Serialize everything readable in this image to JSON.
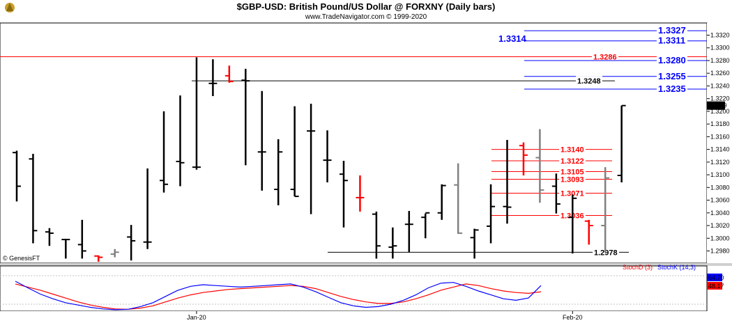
{
  "header": {
    "title": "$GBP-USD:  British Pound/US Dollar @ FORXNY  (Daily bars)",
    "subtitle": "www.TradeNavigator.com © 1999-2020",
    "watermark": "© GenesisFT"
  },
  "colors": {
    "up_bar": "#000000",
    "down_bar": "#ff0000",
    "inside_bar": "#808080",
    "blue_level": "#0000ff",
    "red_level": "#ff0000",
    "black_level": "#000000",
    "stoch_d": "#ff0000",
    "stoch_k": "#0000ff"
  },
  "chart_data": [
    {
      "type": "ohlc",
      "title": "$GBP-USD:  British Pound/US Dollar @ FORXNY  (Daily bars)",
      "ylim": [
        1.2968,
        1.3338
      ],
      "y_ticks": [
        "1.3320",
        "1.3300",
        "1.3280",
        "1.3260",
        "1.3240",
        "1.3220",
        "1.3200",
        "1.3180",
        "1.3160",
        "1.3140",
        "1.3120",
        "1.3100",
        "1.3080",
        "1.3060",
        "1.3040",
        "1.3020",
        "1.3000",
        "1.2980"
      ],
      "x_labels": [
        {
          "label": "Jan-20",
          "bar": 11
        },
        {
          "label": "Feb-20",
          "bar": 34
        }
      ],
      "last_price": "1.3209",
      "bars": [
        {
          "o": 1.3135,
          "h": 1.3138,
          "l": 1.3058,
          "c": 1.3082,
          "color": "up"
        },
        {
          "o": 1.3125,
          "h": 1.3133,
          "l": 1.2992,
          "c": 1.3012,
          "color": "up"
        },
        {
          "o": 1.301,
          "h": 1.3016,
          "l": 1.2988,
          "c": 1.3008,
          "color": "up"
        },
        {
          "o": 1.2998,
          "h": 1.2999,
          "l": 1.2968,
          "c": 1.2998,
          "color": "up"
        },
        {
          "o": 1.299,
          "h": 1.3029,
          "l": 1.2968,
          "c": 1.298,
          "color": "up"
        },
        {
          "o": 1.2972,
          "h": 1.2973,
          "l": 1.2963,
          "c": 1.297,
          "color": "down"
        },
        {
          "o": 1.2975,
          "h": 1.2983,
          "l": 1.297,
          "c": 1.2978,
          "color": "inside"
        },
        {
          "o": 1.3002,
          "h": 1.3021,
          "l": 1.2965,
          "c": 1.2996,
          "color": "up"
        },
        {
          "o": 1.2994,
          "h": 1.311,
          "l": 1.2983,
          "c": 1.2994,
          "color": "up"
        },
        {
          "o": 1.3091,
          "h": 1.32,
          "l": 1.3072,
          "c": 1.3085,
          "color": "up"
        },
        {
          "o": 1.3121,
          "h": 1.3225,
          "l": 1.3082,
          "c": 1.3119,
          "color": "up"
        },
        {
          "o": 1.3112,
          "h": 1.3285,
          "l": 1.3108,
          "c": 1.3112,
          "color": "up"
        },
        {
          "o": 1.3244,
          "h": 1.3282,
          "l": 1.3224,
          "c": 1.3244,
          "color": "up"
        },
        {
          "o": 1.3256,
          "h": 1.3272,
          "l": 1.3245,
          "c": 1.3247,
          "color": "down"
        },
        {
          "o": 1.3249,
          "h": 1.3267,
          "l": 1.3115,
          "c": 1.3248,
          "color": "up"
        },
        {
          "o": 1.3136,
          "h": 1.3232,
          "l": 1.3075,
          "c": 1.3136,
          "color": "up"
        },
        {
          "o": 1.3077,
          "h": 1.3156,
          "l": 1.3052,
          "c": 1.3136,
          "color": "up"
        },
        {
          "o": 1.3077,
          "h": 1.3208,
          "l": 1.3066,
          "c": 1.3066,
          "color": "up"
        },
        {
          "o": 1.3169,
          "h": 1.3212,
          "l": 1.3038,
          "c": 1.3169,
          "color": "up"
        },
        {
          "o": 1.3123,
          "h": 1.317,
          "l": 1.3088,
          "c": 1.3123,
          "color": "up"
        },
        {
          "o": 1.3101,
          "h": 1.3122,
          "l": 1.3017,
          "c": 1.3091,
          "color": "up"
        },
        {
          "o": 1.3064,
          "h": 1.3099,
          "l": 1.3042,
          "c": 1.3064,
          "color": "down"
        },
        {
          "o": 1.3038,
          "h": 1.3042,
          "l": 1.2968,
          "c": 1.2988,
          "color": "up"
        },
        {
          "o": 1.2986,
          "h": 1.3017,
          "l": 1.2968,
          "c": 1.2988,
          "color": "up"
        },
        {
          "o": 1.3022,
          "h": 1.3043,
          "l": 1.2978,
          "c": 1.3022,
          "color": "up"
        },
        {
          "o": 1.3033,
          "h": 1.3039,
          "l": 1.3,
          "c": 1.304,
          "color": "up"
        },
        {
          "o": 1.304,
          "h": 1.3085,
          "l": 1.3029,
          "c": 1.3083,
          "color": "up"
        },
        {
          "o": 1.3084,
          "h": 1.3118,
          "l": 1.3007,
          "c": 1.3008,
          "color": "inside"
        },
        {
          "o": 1.3001,
          "h": 1.3015,
          "l": 1.2968,
          "c": 1.3013,
          "color": "up"
        },
        {
          "o": 1.3019,
          "h": 1.3085,
          "l": 1.2992,
          "c": 1.305,
          "color": "up"
        },
        {
          "o": 1.305,
          "h": 1.3155,
          "l": 1.3023,
          "c": 1.3049,
          "color": "up"
        },
        {
          "o": 1.3146,
          "h": 1.3151,
          "l": 1.3099,
          "c": 1.3131,
          "color": "down"
        },
        {
          "o": 1.3127,
          "h": 1.3172,
          "l": 1.3056,
          "c": 1.3076,
          "color": "inside"
        },
        {
          "o": 1.3082,
          "h": 1.3102,
          "l": 1.3039,
          "c": 1.3054,
          "color": "up"
        },
        {
          "o": 1.3033,
          "h": 1.3069,
          "l": 1.2976,
          "c": 1.3063,
          "color": "up"
        },
        {
          "o": 1.3027,
          "h": 1.3029,
          "l": 1.299,
          "c": 1.302,
          "color": "down"
        },
        {
          "o": 1.302,
          "h": 1.3112,
          "l": 1.2978,
          "c": 1.3095,
          "color": "inside"
        },
        {
          "o": 1.3099,
          "h": 1.3209,
          "l": 1.3088,
          "c": 1.3209,
          "color": "up"
        }
      ]
    },
    {
      "type": "line",
      "title": "",
      "ylim": [
        0,
        100
      ],
      "y_ticks": [],
      "series": [
        {
          "name": "StochD (3)",
          "color": "#ff0000",
          "values": [
            68,
            60,
            52,
            42,
            32,
            22,
            14,
            8,
            4,
            3,
            6,
            12,
            22,
            32,
            40,
            46,
            50,
            54,
            56,
            58,
            60,
            62,
            64,
            62,
            56,
            46,
            36,
            28,
            22,
            18,
            18,
            22,
            30,
            40,
            52,
            60,
            68,
            64,
            56,
            50,
            46,
            44,
            48
          ]
        },
        {
          "name": "StochK (14,3)",
          "color": "#0000ff",
          "values": [
            75,
            58,
            42,
            30,
            20,
            14,
            8,
            4,
            2,
            3,
            10,
            20,
            36,
            52,
            62,
            66,
            64,
            62,
            60,
            62,
            64,
            66,
            68,
            60,
            48,
            34,
            20,
            12,
            8,
            10,
            16,
            26,
            40,
            58,
            70,
            72,
            62,
            50,
            40,
            30,
            26,
            32,
            64
          ]
        }
      ],
      "last_values": {
        "k": "64.70",
        "d": "48.17"
      }
    }
  ],
  "levels": [
    {
      "value": "1.3327",
      "price": 1.3327,
      "color": "blue",
      "x_start": 752,
      "label_side": "right",
      "size": "big"
    },
    {
      "value": "1.3311",
      "price": 1.3311,
      "color": "blue",
      "x_start": 752,
      "label_side": "right",
      "size": "big"
    },
    {
      "value": "1.3314",
      "price": 1.3314,
      "color": "blue",
      "x_start": 752,
      "label_side": "left",
      "size": "big"
    },
    {
      "value": "1.3286",
      "price": 1.3286,
      "color": "red",
      "x_start": 0,
      "label_side": "mid",
      "size": "normal"
    },
    {
      "value": "1.3280",
      "price": 1.328,
      "color": "blue",
      "x_start": 752,
      "label_side": "right",
      "size": "big"
    },
    {
      "value": "1.3255",
      "price": 1.3255,
      "color": "blue",
      "x_start": 752,
      "label_side": "right",
      "size": "big"
    },
    {
      "value": "1.3248",
      "price": 1.3248,
      "color": "black",
      "x_start": 275,
      "label_side": "mid",
      "size": "normal"
    },
    {
      "value": "1.3235",
      "price": 1.3235,
      "color": "blue",
      "x_start": 752,
      "label_side": "right",
      "size": "big"
    },
    {
      "value": "1.3140",
      "price": 1.314,
      "color": "red",
      "x_start": 705,
      "label_side": "mid",
      "size": "normal"
    },
    {
      "value": "1.3122",
      "price": 1.3122,
      "color": "red",
      "x_start": 705,
      "label_side": "mid",
      "size": "normal"
    },
    {
      "value": "1.3105",
      "price": 1.3105,
      "color": "red",
      "x_start": 705,
      "label_side": "mid",
      "size": "normal"
    },
    {
      "value": "1.3093",
      "price": 1.3093,
      "color": "red",
      "x_start": 705,
      "label_side": "mid",
      "size": "normal"
    },
    {
      "value": "1.3071",
      "price": 1.3071,
      "color": "red",
      "x_start": 705,
      "label_side": "mid",
      "size": "normal"
    },
    {
      "value": "1.3036",
      "price": 1.3036,
      "color": "red",
      "x_start": 705,
      "label_side": "mid",
      "size": "normal"
    },
    {
      "value": "1.2978",
      "price": 1.2978,
      "color": "black",
      "x_start": 470,
      "label_side": "mid",
      "size": "normal"
    }
  ]
}
